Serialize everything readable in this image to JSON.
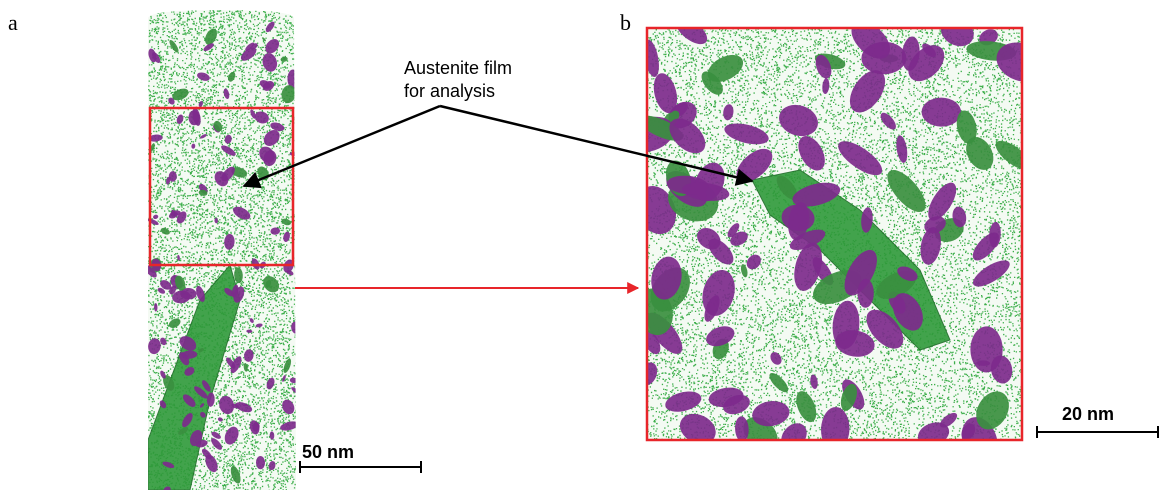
{
  "panels": [
    {
      "label": "a",
      "scale_bar": "50 nm"
    },
    {
      "label": "b",
      "scale_bar": "20 nm"
    }
  ],
  "annotation": {
    "lines": [
      "Austenite film",
      "for analysis"
    ]
  }
}
